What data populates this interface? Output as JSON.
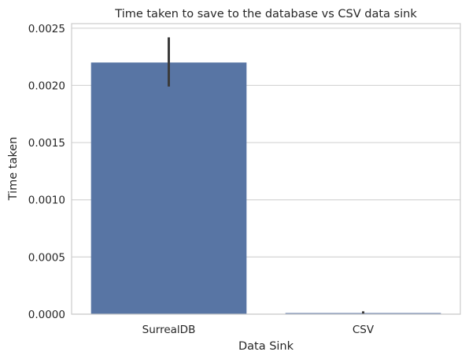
{
  "chart_data": {
    "type": "bar",
    "title": "Time taken to save to the database vs CSV data sink",
    "xlabel": "Data Sink",
    "ylabel": "Time taken",
    "categories": [
      "SurrealDB",
      "CSV"
    ],
    "values": [
      0.0022,
      1e-05
    ],
    "error_bars": [
      {
        "low": 0.00199,
        "high": 0.00242
      },
      {
        "low": 5e-06,
        "high": 2.5e-05
      }
    ],
    "ylim": [
      0,
      0.00254
    ],
    "yticks": [
      "0.0000",
      "0.0005",
      "0.0010",
      "0.0015",
      "0.0020",
      "0.0025"
    ],
    "ytick_values": [
      0,
      0.0005,
      0.001,
      0.0015,
      0.002,
      0.0025
    ],
    "grid": "horizontal",
    "colors": {
      "bar": "#5875a4",
      "error_bar": "#3b3b3b",
      "grid": "#d4d4d4",
      "frame": "#cccccc",
      "text": "#262626"
    }
  }
}
